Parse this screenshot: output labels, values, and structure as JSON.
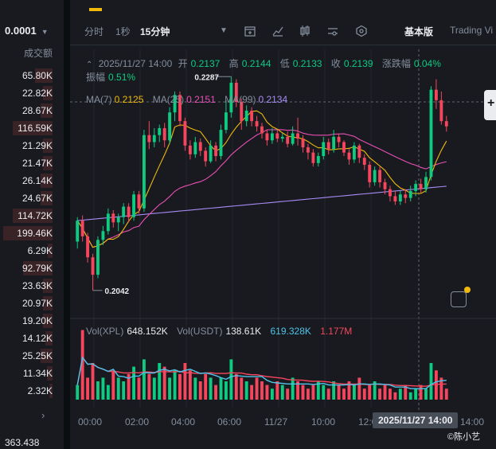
{
  "left_panel": {
    "price_step": "0.0001",
    "volume_title": "成交额",
    "volumes": [
      {
        "value": "65.80K",
        "fill": 0.35
      },
      {
        "value": "22.82K",
        "fill": 0.2
      },
      {
        "value": "28.67K",
        "fill": 0.25
      },
      {
        "value": "116.59K",
        "fill": 0.8
      },
      {
        "value": "21.29K",
        "fill": 0.2
      },
      {
        "value": "21.47K",
        "fill": 0.2
      },
      {
        "value": "26.14K",
        "fill": 0.25
      },
      {
        "value": "24.67K",
        "fill": 0.25
      },
      {
        "value": "114.72K",
        "fill": 0.8
      },
      {
        "value": "199.46K",
        "fill": 1.0
      },
      {
        "value": "6.29K",
        "fill": 0.1
      },
      {
        "value": "92.79K",
        "fill": 0.6
      },
      {
        "value": "23.63K",
        "fill": 0.2
      },
      {
        "value": "20.97K",
        "fill": 0.2
      },
      {
        "value": "19.20K",
        "fill": 0.2
      },
      {
        "value": "14.12K",
        "fill": 0.15
      },
      {
        "value": "25.25K",
        "fill": 0.25
      },
      {
        "value": "11.34K",
        "fill": 0.12
      },
      {
        "value": "2.32K",
        "fill": 0.05
      }
    ],
    "arrow": "›",
    "last_price": "363.438"
  },
  "toolbar": {
    "intervals": [
      "分时",
      "1秒",
      "15分钟"
    ],
    "active_interval": "15分钟",
    "version_basic": "基本版",
    "version_tv": "Trading Vi",
    "icons": [
      "calendar-plus-icon",
      "line-chart-icon",
      "candle-icon",
      "settings-sliders-icon",
      "hexagon-settings-icon"
    ]
  },
  "ohlc": {
    "datetime": "2025/11/27 14:00",
    "open_label": "开",
    "open": "0.2137",
    "high_label": "高",
    "high": "0.2144",
    "low_label": "低",
    "low": "0.2133",
    "close_label": "收",
    "close": "0.2139",
    "change_label": "涨跌幅",
    "change": "0.04%",
    "amplitude_label": "振幅",
    "amplitude": "0.51%"
  },
  "ma": {
    "ma7_label": "MA(7)",
    "ma7": "0.2125",
    "ma25_label": "MA(25)",
    "ma25": "0.2151",
    "ma99_label": "MA(99)",
    "ma99": "0.2134"
  },
  "volume_legend": {
    "vol_xpl_label": "Vol(XPL)",
    "vol_xpl": "648.152K",
    "vol_usdt_label": "Vol(USDT)",
    "vol_usdt": "138.61K",
    "vol_ma1": "619.328K",
    "vol_ma2": "1.177M"
  },
  "colors": {
    "up": "#0ecb81",
    "down": "#f6465d",
    "ma7": "#f0b90b",
    "ma25": "#e84fb4",
    "ma99": "#a98bf5",
    "vol_ma": "#4fc3e8"
  },
  "chart_data": {
    "type": "candlestick",
    "high_label": "0.2287",
    "low_label": "0.2042",
    "x_ticks": [
      "00:00",
      "02:00",
      "04:00",
      "06:00",
      "11/27",
      "10:00",
      "12:00",
      "14:00"
    ],
    "crosshair_label": "2025/11/27 14:00",
    "candles": [
      [
        0.2098,
        0.2122,
        0.209,
        0.2126
      ],
      [
        0.2122,
        0.2104,
        0.2098,
        0.2128
      ],
      [
        0.2104,
        0.208,
        0.2074,
        0.2108
      ],
      [
        0.208,
        0.206,
        0.2042,
        0.2084
      ],
      [
        0.206,
        0.21,
        0.2056,
        0.2104
      ],
      [
        0.21,
        0.211,
        0.2094,
        0.2116
      ],
      [
        0.211,
        0.213,
        0.2106,
        0.2136
      ],
      [
        0.213,
        0.212,
        0.2114,
        0.2134
      ],
      [
        0.212,
        0.2126,
        0.211,
        0.213
      ],
      [
        0.2126,
        0.2138,
        0.2118,
        0.2142
      ],
      [
        0.2138,
        0.2126,
        0.212,
        0.2142
      ],
      [
        0.2126,
        0.2152,
        0.2122,
        0.2156
      ],
      [
        0.2152,
        0.2136,
        0.213,
        0.2156
      ],
      [
        0.2136,
        0.222,
        0.2132,
        0.2226
      ],
      [
        0.222,
        0.2212,
        0.2204,
        0.2236
      ],
      [
        0.2212,
        0.222,
        0.2206,
        0.2228
      ],
      [
        0.222,
        0.2228,
        0.2212,
        0.2232
      ],
      [
        0.2228,
        0.2214,
        0.2206,
        0.2234
      ],
      [
        0.2214,
        0.2246,
        0.221,
        0.2252
      ],
      [
        0.2246,
        0.2266,
        0.2236,
        0.227
      ],
      [
        0.2266,
        0.2236,
        0.223,
        0.227
      ],
      [
        0.2236,
        0.2208,
        0.2202,
        0.224
      ],
      [
        0.2208,
        0.2198,
        0.2192,
        0.2214
      ],
      [
        0.2198,
        0.2212,
        0.2194,
        0.2218
      ],
      [
        0.2212,
        0.2202,
        0.2196,
        0.2216
      ],
      [
        0.2202,
        0.219,
        0.2184,
        0.2206
      ],
      [
        0.219,
        0.2208,
        0.2188,
        0.2214
      ],
      [
        0.2208,
        0.2196,
        0.219,
        0.2212
      ],
      [
        0.2196,
        0.2226,
        0.2192,
        0.2232
      ],
      [
        0.2226,
        0.2246,
        0.2222,
        0.226
      ],
      [
        0.2246,
        0.228,
        0.224,
        0.2287
      ],
      [
        0.228,
        0.2258,
        0.2252,
        0.2284
      ],
      [
        0.2258,
        0.2236,
        0.2226,
        0.2262
      ],
      [
        0.2236,
        0.2248,
        0.223,
        0.2254
      ],
      [
        0.2248,
        0.2236,
        0.223,
        0.2252
      ],
      [
        0.2236,
        0.223,
        0.2224,
        0.2242
      ],
      [
        0.223,
        0.2222,
        0.2216,
        0.2234
      ],
      [
        0.2222,
        0.2214,
        0.2208,
        0.2226
      ],
      [
        0.2214,
        0.2222,
        0.221,
        0.2228
      ],
      [
        0.2222,
        0.2216,
        0.2212,
        0.2226
      ],
      [
        0.2216,
        0.2218,
        0.2212,
        0.2222
      ],
      [
        0.2218,
        0.221,
        0.2206,
        0.2224
      ],
      [
        0.221,
        0.2222,
        0.2208,
        0.223
      ],
      [
        0.2222,
        0.2216,
        0.2208,
        0.224
      ],
      [
        0.2216,
        0.2206,
        0.22,
        0.222
      ],
      [
        0.2206,
        0.22,
        0.2192,
        0.221
      ],
      [
        0.22,
        0.2188,
        0.2184,
        0.2204
      ],
      [
        0.2188,
        0.2196,
        0.2184,
        0.22
      ],
      [
        0.2196,
        0.2212,
        0.2192,
        0.2218
      ],
      [
        0.2212,
        0.2204,
        0.2198,
        0.2216
      ],
      [
        0.2204,
        0.2218,
        0.22,
        0.2226
      ],
      [
        0.2218,
        0.2212,
        0.2206,
        0.2222
      ],
      [
        0.2212,
        0.22,
        0.2196,
        0.2214
      ],
      [
        0.22,
        0.2192,
        0.2186,
        0.2204
      ],
      [
        0.2192,
        0.2208,
        0.2188,
        0.2212
      ],
      [
        0.2208,
        0.2194,
        0.2188,
        0.221
      ],
      [
        0.2194,
        0.2186,
        0.218,
        0.2198
      ],
      [
        0.2186,
        0.2166,
        0.216,
        0.219
      ],
      [
        0.2166,
        0.218,
        0.2162,
        0.2184
      ],
      [
        0.218,
        0.2166,
        0.216,
        0.2184
      ],
      [
        0.2166,
        0.2158,
        0.2152,
        0.217
      ],
      [
        0.2158,
        0.215,
        0.2144,
        0.2162
      ],
      [
        0.215,
        0.2144,
        0.214,
        0.2156
      ],
      [
        0.2144,
        0.2152,
        0.214,
        0.2156
      ],
      [
        0.2152,
        0.2148,
        0.2142,
        0.2158
      ],
      [
        0.2148,
        0.2156,
        0.2144,
        0.2162
      ],
      [
        0.2156,
        0.2164,
        0.215,
        0.2168
      ],
      [
        0.2164,
        0.2158,
        0.2154,
        0.217
      ],
      [
        0.2158,
        0.2172,
        0.2154,
        0.2178
      ],
      [
        0.2172,
        0.2272,
        0.2168,
        0.2276
      ],
      [
        0.2272,
        0.226,
        0.225,
        0.2284
      ],
      [
        0.226,
        0.2236,
        0.2232,
        0.227
      ],
      [
        0.2236,
        0.223,
        0.2224,
        0.2242
      ]
    ],
    "volumes": [
      0.2,
      0.95,
      0.3,
      0.5,
      0.25,
      0.3,
      0.2,
      0.4,
      0.3,
      0.25,
      0.35,
      0.45,
      0.3,
      0.55,
      0.35,
      0.3,
      0.5,
      0.45,
      0.3,
      0.4,
      0.35,
      0.5,
      0.4,
      0.3,
      0.25,
      0.35,
      0.3,
      0.2,
      0.3,
      0.25,
      0.55,
      0.35,
      0.3,
      0.25,
      0.2,
      0.3,
      0.25,
      0.2,
      0.15,
      0.25,
      0.2,
      0.15,
      0.3,
      0.25,
      0.2,
      0.15,
      0.2,
      0.25,
      0.2,
      0.15,
      0.25,
      0.2,
      0.15,
      0.25,
      0.2,
      0.3,
      0.15,
      0.2,
      0.25,
      0.15,
      0.2,
      0.15,
      0.1,
      0.15,
      0.2,
      0.1,
      0.15,
      0.2,
      0.15,
      0.5,
      0.4,
      0.3,
      0.15
    ]
  }
}
